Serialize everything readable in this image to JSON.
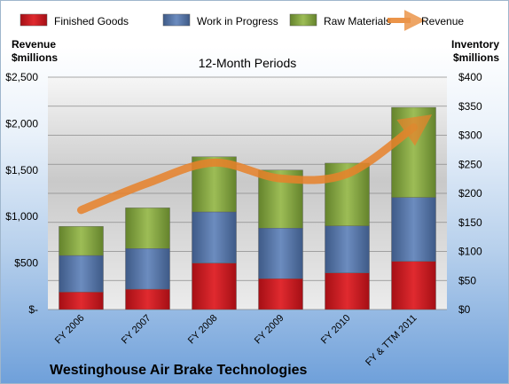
{
  "chart_data": {
    "type": "bar",
    "title": "Westinghouse Air Brake Technologies",
    "subtitle": "12-Month Periods",
    "categories": [
      "FY 2006",
      "FY 2007",
      "FY 2008",
      "FY 2009",
      "FY 2010",
      "FY & TTM 2011"
    ],
    "series": [
      {
        "name": "Finished Goods",
        "axis": "right",
        "kind": "stacked-bar",
        "color": "#c0151c",
        "values": [
          30,
          35,
          80,
          53,
          63,
          83
        ]
      },
      {
        "name": "Work in Progress",
        "axis": "right",
        "kind": "stacked-bar",
        "color": "#4f6fa0",
        "values": [
          63,
          70,
          88,
          87,
          81,
          110
        ]
      },
      {
        "name": "Raw Materials",
        "axis": "right",
        "kind": "stacked-bar",
        "color": "#7a9a3a",
        "values": [
          50,
          70,
          95,
          100,
          108,
          155
        ]
      },
      {
        "name": "Revenue",
        "axis": "left",
        "kind": "line",
        "color": "#e8822a",
        "values": [
          1070,
          1360,
          1580,
          1410,
          1460,
          1960
        ]
      }
    ],
    "y_left": {
      "label_line1": "Revenue",
      "label_line2": "$millions",
      "range": [
        0,
        2500
      ],
      "ticks": [
        "$-",
        "$500",
        "$1,000",
        "$1,500",
        "$2,000",
        "$2,500"
      ]
    },
    "y_right": {
      "label_line1": "Inventory",
      "label_line2": "$millions",
      "range": [
        0,
        400
      ],
      "ticks": [
        "$0",
        "$50",
        "$100",
        "$150",
        "$200",
        "$250",
        "$300",
        "$350",
        "$400"
      ]
    },
    "grid": true,
    "legend_position": "top"
  }
}
